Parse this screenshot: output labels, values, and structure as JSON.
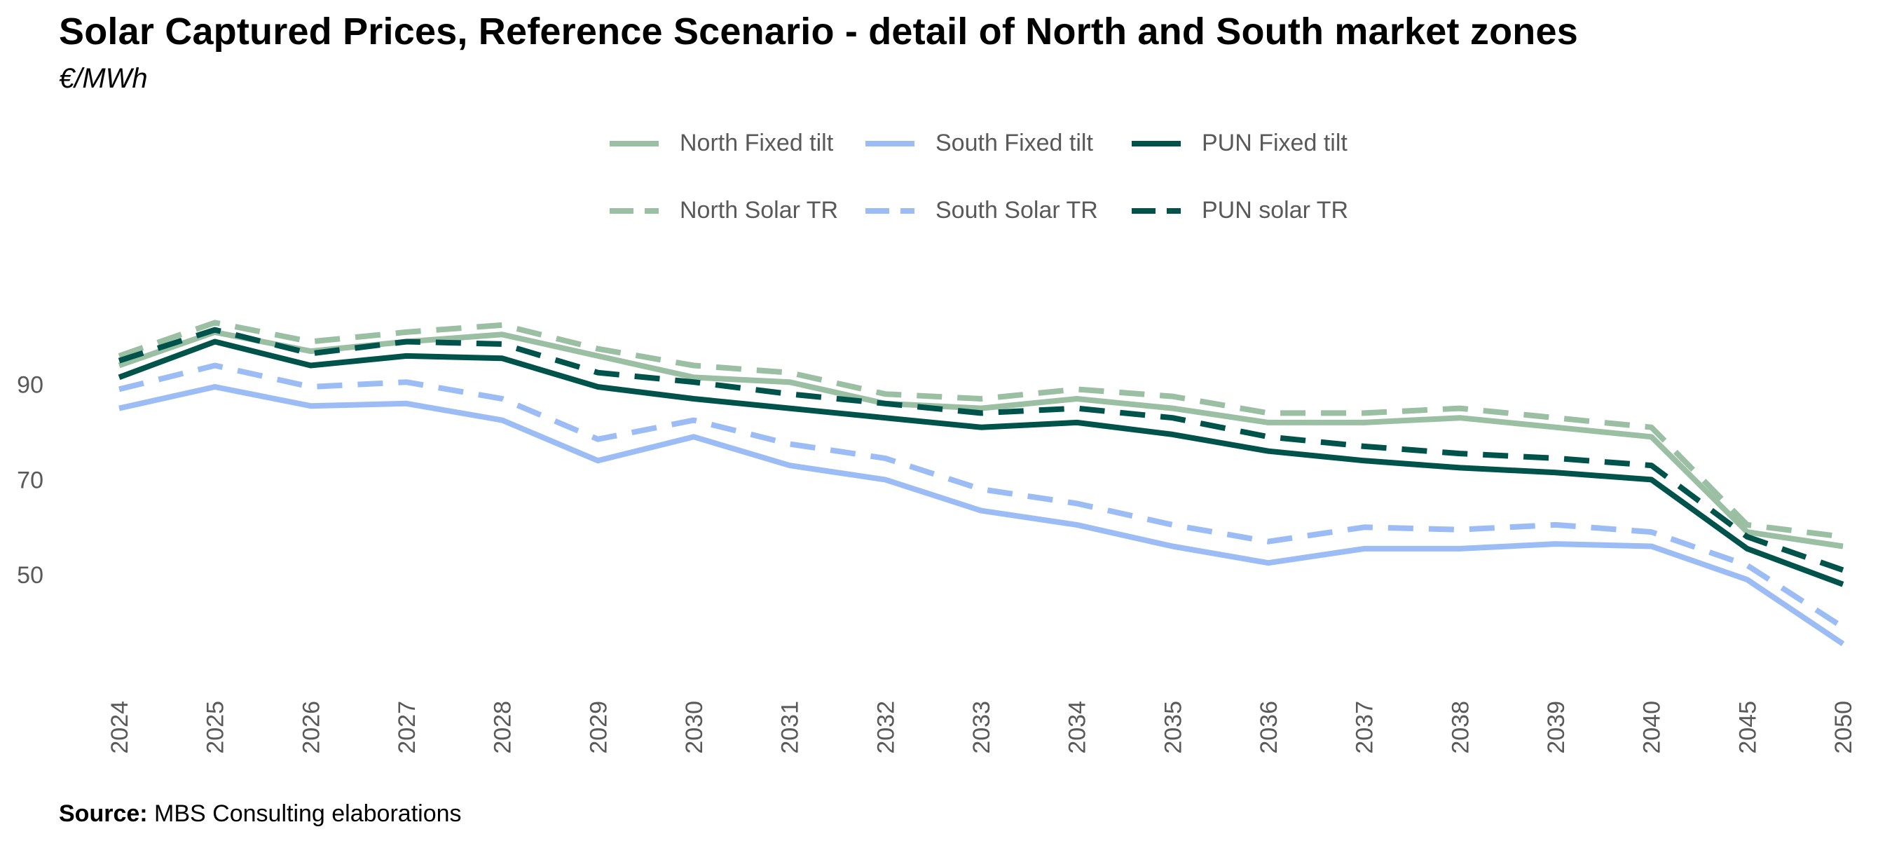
{
  "header": {
    "title": "Solar Captured Prices, Reference Scenario - detail of North and South market zones",
    "subtitle": "€/MWh"
  },
  "footer": {
    "source_label": "Source:",
    "source_text": "MBS Consulting elaborations"
  },
  "colors": {
    "north": "#9bbfa3",
    "south": "#9cbcf5",
    "pun": "#00534b",
    "tick_text": "#595959"
  },
  "chart_data": {
    "type": "line",
    "title": "Solar Captured Prices, Reference Scenario - detail of North and South market zones",
    "subtitle": "€/MWh",
    "xlabel": "",
    "ylabel": "",
    "grid": false,
    "legend_position": "top",
    "x": [
      "2024",
      "2025",
      "2026",
      "2027",
      "2028",
      "2029",
      "2030",
      "2031",
      "2032",
      "2033",
      "2034",
      "2035",
      "2036",
      "2037",
      "2038",
      "2039",
      "2040",
      "2045",
      "2050"
    ],
    "y_ticks": [
      50,
      70,
      90
    ],
    "ylim": [
      30,
      106
    ],
    "series": [
      {
        "name": "North Fixed tilt",
        "color": "#9bbfa3",
        "dash": false,
        "values": [
          94,
          101,
          97,
          99,
          100.5,
          96,
          91.5,
          90.5,
          86,
          85,
          87,
          85,
          82,
          82,
          83,
          81,
          79,
          59,
          56
        ]
      },
      {
        "name": "South Fixed tilt",
        "color": "#9cbcf5",
        "dash": false,
        "values": [
          85,
          89.5,
          85.5,
          86,
          82.5,
          74,
          79,
          73,
          70,
          63.5,
          60.5,
          56,
          52.5,
          55.5,
          55.5,
          56.5,
          56,
          49,
          35.5
        ]
      },
      {
        "name": "PUN Fixed tilt",
        "color": "#00534b",
        "dash": false,
        "values": [
          91.5,
          99,
          94,
          96,
          95.5,
          89.5,
          87,
          85,
          83,
          81,
          82,
          79.5,
          76,
          74,
          72.5,
          71.5,
          70,
          55.5,
          48
        ]
      },
      {
        "name": "North Solar TR",
        "color": "#9bbfa3",
        "dash": true,
        "values": [
          96,
          103,
          99,
          101,
          102.5,
          97.5,
          94,
          92.5,
          88,
          87,
          89,
          87.5,
          84,
          84,
          85,
          83,
          81,
          60.5,
          58
        ]
      },
      {
        "name": "South Solar TR",
        "color": "#9cbcf5",
        "dash": true,
        "values": [
          89,
          94,
          89.5,
          90.5,
          87,
          78.5,
          82.5,
          77.5,
          74.5,
          68,
          65,
          60.5,
          57,
          60,
          59.5,
          60.5,
          59,
          52,
          39
        ]
      },
      {
        "name": "PUN solar TR",
        "color": "#00534b",
        "dash": true,
        "values": [
          95,
          101.5,
          96.5,
          99,
          98.5,
          92.5,
          90.5,
          88,
          86,
          84,
          85,
          83,
          79,
          77,
          75.5,
          74.5,
          73,
          58,
          51
        ]
      }
    ]
  }
}
